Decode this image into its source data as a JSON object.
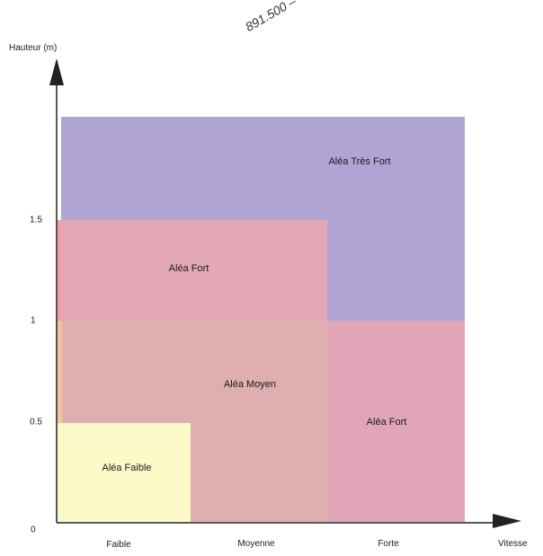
{
  "stamp_text": "891.500 –",
  "axes": {
    "y_title": "Hauteur (m)",
    "x_title": "Vitesse",
    "y_ticks": [
      "0",
      "0.5",
      "1",
      "1.5"
    ],
    "x_ticks": [
      "Faible",
      "Moyenne",
      "Forte"
    ]
  },
  "zones": [
    {
      "id": "tres-fort",
      "label": "Aléa Très Fort",
      "color": "#b0a4d4"
    },
    {
      "id": "fort-left",
      "label": "Aléa Fort",
      "color": "#e3a8b8"
    },
    {
      "id": "fort-right",
      "label": "Aléa Fort",
      "color": "#e0a6b8"
    },
    {
      "id": "moyen",
      "label": "Aléa Moyen",
      "color": "#dfaeb0"
    },
    {
      "id": "faible",
      "label": "Aléa Faible",
      "color": "#fbfac8"
    }
  ],
  "colors": {
    "axis": "#222222",
    "left_edge_orange": "#f5c09a",
    "left_edge_red": "#f1a0a8"
  }
}
